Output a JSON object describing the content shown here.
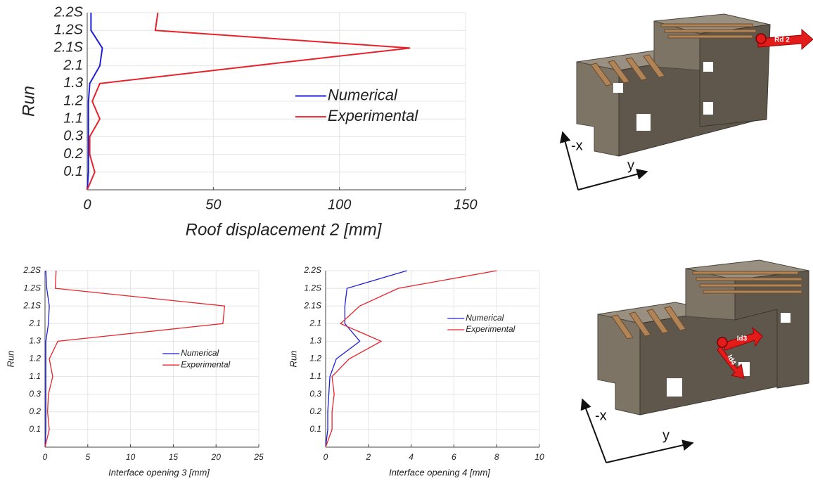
{
  "chart_data": [
    {
      "type": "line",
      "xlabel": "Roof displacement 2 [mm]",
      "ylabel": "Run",
      "categories": [
        null,
        "0.1",
        "0.2",
        "0.3",
        "1.1",
        "1.2",
        "1.3",
        "2.1",
        "2.1S",
        "1.2S",
        "2.2S"
      ],
      "series": [
        {
          "name": "Numerical",
          "color": "#1f1fd6",
          "values": [
            0,
            0.5,
            0.5,
            0.5,
            0.5,
            0.5,
            1,
            5,
            6,
            1.5,
            1.5
          ]
        },
        {
          "name": "Experimental",
          "color": "#e8222a",
          "values": [
            0,
            3,
            1,
            1,
            5,
            2,
            5,
            66,
            128,
            27,
            28
          ]
        }
      ],
      "xlim": [
        0,
        150
      ],
      "xticks": [
        0,
        50,
        100,
        150
      ],
      "grid": true,
      "legend": "center right"
    },
    {
      "type": "line",
      "xlabel": "Interface opening 3 [mm]",
      "ylabel": "Run",
      "categories": [
        null,
        "0.1",
        "0.2",
        "0.3",
        "1.1",
        "1.2",
        "1.3",
        "2.1",
        "2.1S",
        "1.2S",
        "2.2S"
      ],
      "series": [
        {
          "name": "Numerical",
          "color": "#1f1fd6",
          "values": [
            0,
            0.1,
            0.1,
            0.1,
            0.1,
            0.1,
            0.1,
            0.4,
            0.5,
            0.2,
            0.1
          ]
        },
        {
          "name": "Experimental",
          "color": "#e8222a",
          "values": [
            0,
            0.5,
            0.3,
            0.4,
            0.9,
            0.5,
            1.5,
            20.8,
            21,
            1.2,
            1.3
          ]
        }
      ],
      "xlim": [
        0,
        25
      ],
      "xticks": [
        0,
        5,
        10,
        15,
        20,
        25
      ],
      "grid": true,
      "legend": "center right"
    },
    {
      "type": "line",
      "xlabel": "Interface opening 4 [mm]",
      "ylabel": "Run",
      "categories": [
        null,
        "0.1",
        "0.2",
        "0.3",
        "1.1",
        "1.2",
        "1.3",
        "2.1",
        "2.1S",
        "1.2S",
        "2.2S"
      ],
      "series": [
        {
          "name": "Numerical",
          "color": "#1f1fd6",
          "values": [
            0,
            0.1,
            0.1,
            0.15,
            0.2,
            0.5,
            1.6,
            0.9,
            0.9,
            1.0,
            3.8
          ]
        },
        {
          "name": "Experimental",
          "color": "#e8222a",
          "values": [
            0,
            0.3,
            0.3,
            0.4,
            0.3,
            1.1,
            2.6,
            0.7,
            1.6,
            3.4,
            8
          ]
        }
      ],
      "xlim": [
        0,
        10
      ],
      "xticks": [
        0,
        2,
        4,
        6,
        8,
        10
      ],
      "grid": true,
      "legend": "upper right"
    }
  ],
  "models": [
    {
      "arrow_labels": [
        "Rd 2"
      ],
      "axis_labels": [
        "-x",
        "y"
      ]
    },
    {
      "arrow_labels": [
        "Id3",
        "Id4"
      ],
      "axis_labels": [
        "-x",
        "y"
      ]
    }
  ]
}
